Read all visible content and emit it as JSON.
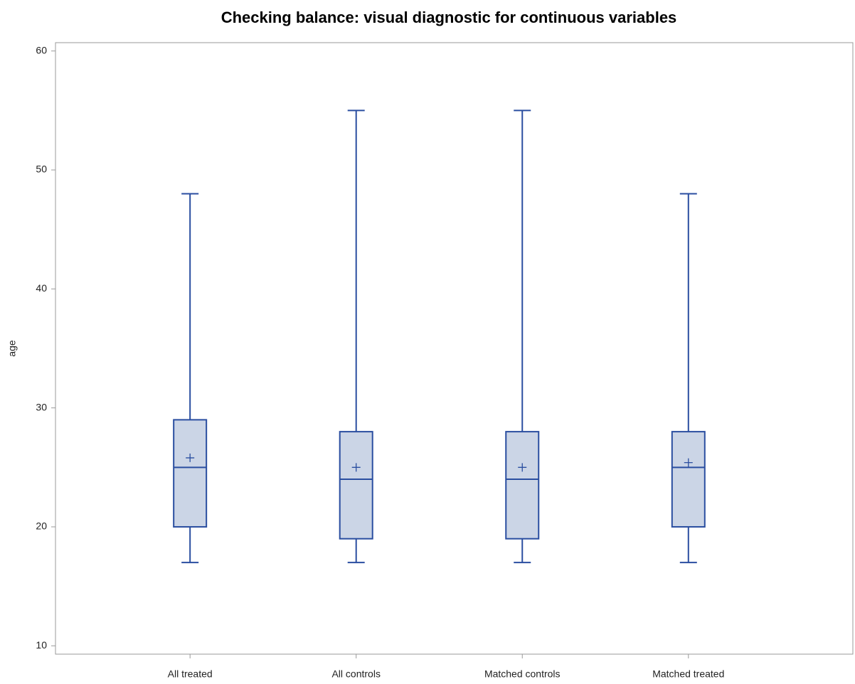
{
  "chart_data": {
    "type": "box",
    "title": "Checking balance: visual diagnostic for continuous variables",
    "y_label": "age",
    "categories": [
      "All treated",
      "All controls",
      "Matched controls",
      "Matched treated"
    ],
    "min": [
      17,
      17,
      17,
      17
    ],
    "q1": [
      20,
      19,
      19,
      20
    ],
    "median": [
      25,
      24,
      24,
      25
    ],
    "q3": [
      29,
      28,
      28,
      28
    ],
    "max": [
      48,
      55,
      55,
      48
    ],
    "mean": [
      25.8,
      25,
      25,
      25.4
    ],
    "color": "#2a4ea0",
    "fill": "#cbd5e6",
    "ylim": [
      9.3,
      60.7
    ],
    "yticks": [
      10,
      20,
      30,
      40,
      50,
      60
    ],
    "grid": false
  }
}
